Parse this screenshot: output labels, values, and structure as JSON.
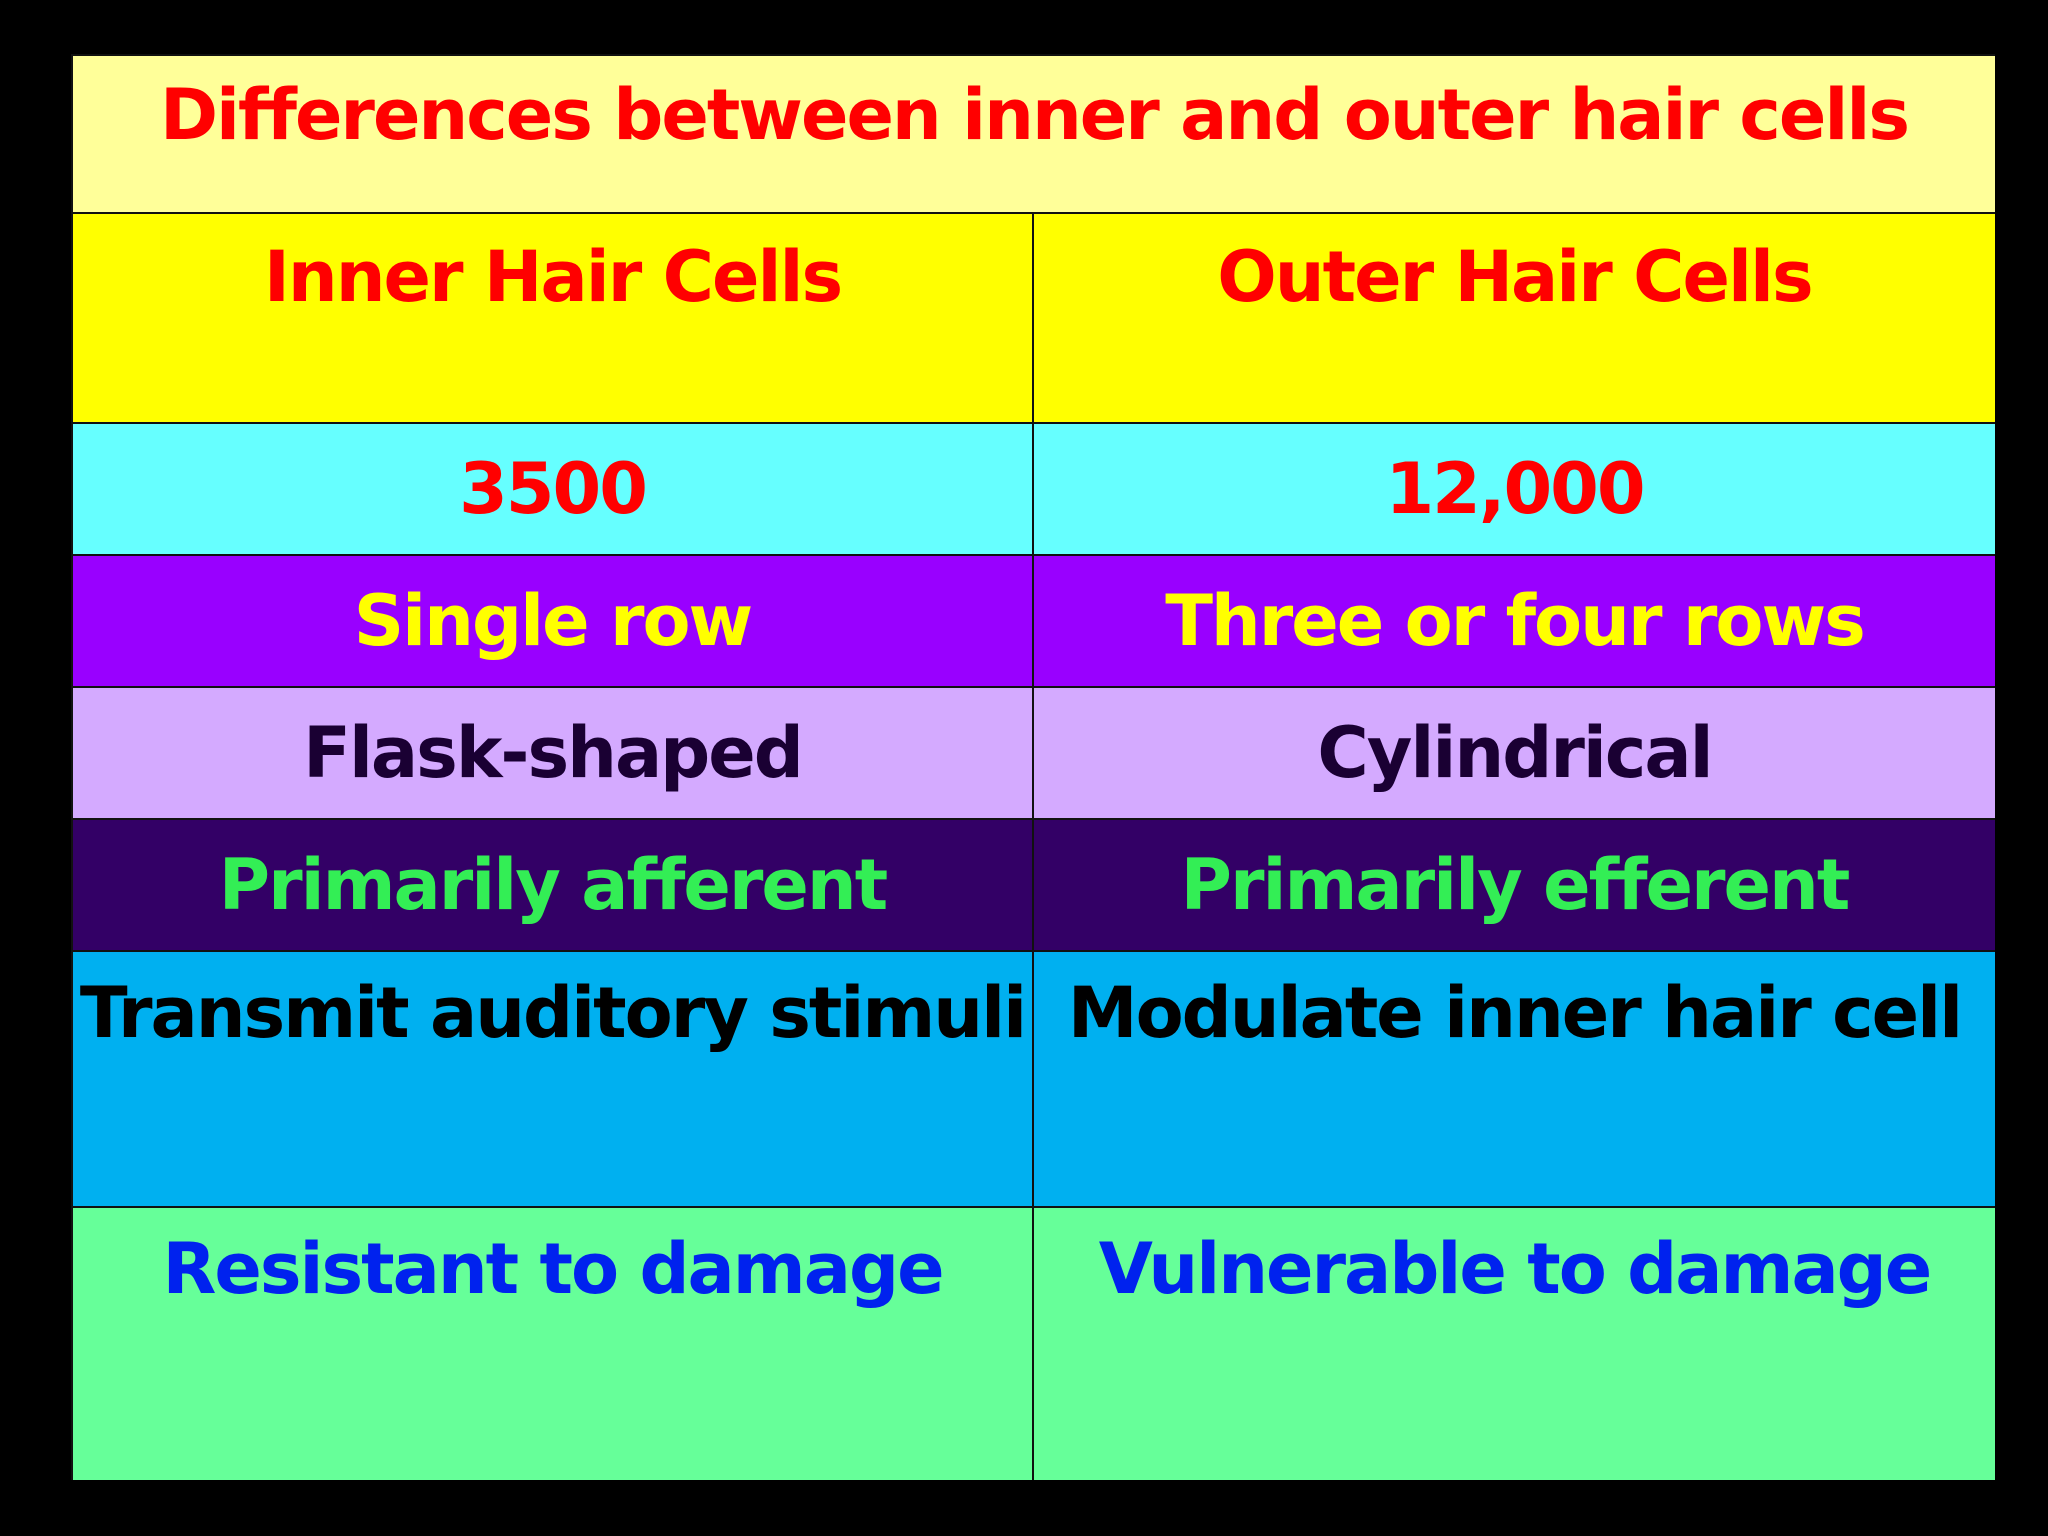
{
  "title": {
    "text": "Differences  between inner and outer hair cells",
    "bg": "#FFFF99",
    "color": "#FF0000"
  },
  "headers": {
    "inner": "Inner Hair Cells",
    "outer": "Outer Hair Cells",
    "bg": "#FFFF00",
    "color": "#FF0000"
  },
  "rows": [
    {
      "inner": "3500",
      "outer": "12,000",
      "bg": "#66FFFF",
      "color": "#FF0000"
    },
    {
      "inner": "Single row",
      "outer": "Three or four rows",
      "bg": "#9900FF",
      "color": "#FFFF00"
    },
    {
      "inner": "Flask-shaped",
      "outer": "Cylindrical",
      "bg": "#D4AAFF",
      "color": "#1A0033"
    },
    {
      "inner": "Primarily afferent",
      "outer": "Primarily efferent",
      "bg": "#330066",
      "color": "#33EE55"
    },
    {
      "inner": "Transmit auditory stimuli",
      "outer": "Modulate inner hair cell",
      "bg": "#00B0F0",
      "color": "#000000"
    },
    {
      "inner": "Resistant to damage",
      "outer": "Vulnerable to damage",
      "bg": "#66FF99",
      "color": "#0022EE"
    }
  ]
}
